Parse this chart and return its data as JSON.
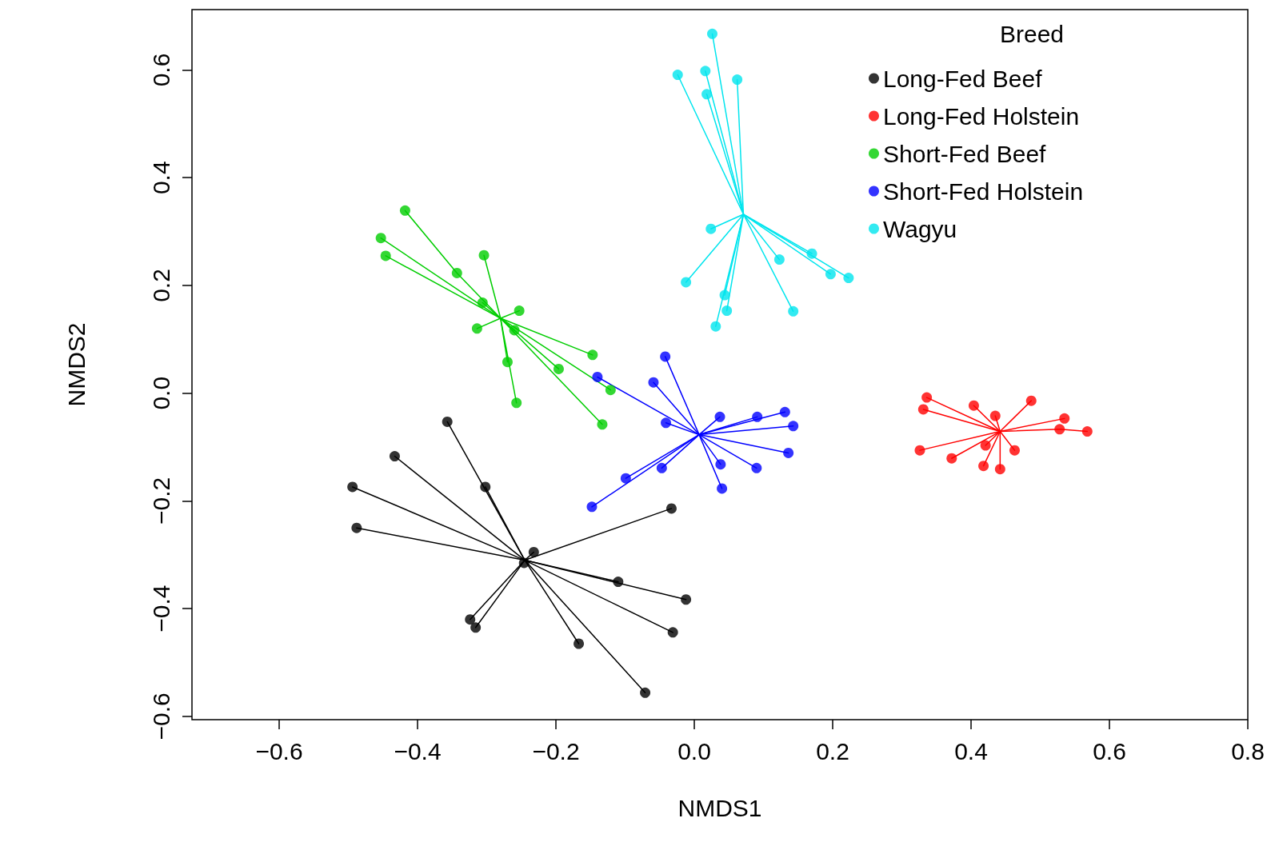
{
  "chart_data": {
    "type": "scatter",
    "xlabel": "NMDS1",
    "ylabel": "NMDS2",
    "legend_title": "Breed",
    "legend": "top right",
    "grid": false,
    "marker": "circle",
    "xlim": [
      -0.726,
      0.8
    ],
    "ylim": [
      -0.606,
      0.712
    ],
    "xticks": [
      {
        "value": -0.6,
        "label": "−0.6"
      },
      {
        "value": -0.4,
        "label": "−0.4"
      },
      {
        "value": -0.2,
        "label": "−0.2"
      },
      {
        "value": 0,
        "label": "0.0"
      },
      {
        "value": 0.2,
        "label": "0.2"
      },
      {
        "value": 0.4,
        "label": "0.4"
      },
      {
        "value": 0.6,
        "label": "0.6"
      },
      {
        "value": 0.8,
        "label": "0.8"
      }
    ],
    "yticks": [
      {
        "value": -0.6,
        "label": "−0.6"
      },
      {
        "value": -0.4,
        "label": "−0.4"
      },
      {
        "value": -0.2,
        "label": "−0.2"
      },
      {
        "value": 0,
        "label": "0.0"
      },
      {
        "value": 0.2,
        "label": "0.2"
      },
      {
        "value": 0.4,
        "label": "0.4"
      },
      {
        "value": 0.6,
        "label": "0.6"
      }
    ],
    "series": [
      {
        "name": "Long-Fed Beef",
        "color": "#000000",
        "x": [
          -0.357,
          -0.433,
          -0.494,
          -0.488,
          -0.302,
          -0.232,
          -0.246,
          -0.033,
          -0.11,
          -0.012,
          -0.031,
          -0.167,
          -0.324,
          -0.316,
          -0.071
        ],
        "values": [
          -0.053,
          -0.117,
          -0.174,
          -0.25,
          -0.174,
          -0.295,
          -0.315,
          -0.214,
          -0.35,
          -0.383,
          -0.444,
          -0.465,
          -0.42,
          -0.435,
          -0.556
        ]
      },
      {
        "name": "Long-Fed Holstein",
        "color": "#ff0000",
        "x": [
          0.336,
          0.331,
          0.404,
          0.435,
          0.487,
          0.535,
          0.528,
          0.568,
          0.326,
          0.372,
          0.421,
          0.463,
          0.418,
          0.442
        ],
        "values": [
          -0.008,
          -0.03,
          -0.023,
          -0.042,
          -0.014,
          -0.047,
          -0.067,
          -0.071,
          -0.106,
          -0.121,
          -0.097,
          -0.106,
          -0.135,
          -0.141
        ]
      },
      {
        "name": "Short-Fed Beef",
        "color": "#00cd00",
        "x": [
          -0.418,
          -0.453,
          -0.446,
          -0.304,
          -0.343,
          -0.306,
          -0.314,
          -0.253,
          -0.26,
          -0.27,
          -0.257,
          -0.196,
          -0.147,
          -0.121,
          -0.133
        ],
        "values": [
          0.339,
          0.288,
          0.255,
          0.256,
          0.223,
          0.168,
          0.12,
          0.153,
          0.117,
          0.058,
          -0.018,
          0.045,
          0.071,
          0.006,
          -0.058
        ]
      },
      {
        "name": "Short-Fed Holstein",
        "color": "#0000ff",
        "x": [
          -0.042,
          -0.059,
          -0.14,
          -0.041,
          0.037,
          0.091,
          0.131,
          0.143,
          0.136,
          0.038,
          0.09,
          0.04,
          -0.047,
          -0.099,
          -0.148
        ],
        "values": [
          0.068,
          0.02,
          0.03,
          -0.055,
          -0.044,
          -0.044,
          -0.035,
          -0.061,
          -0.111,
          -0.132,
          -0.139,
          -0.177,
          -0.139,
          -0.158,
          -0.211
        ]
      },
      {
        "name": "Wagyu",
        "color": "#00e5ee",
        "x": [
          0.026,
          -0.024,
          0.016,
          0.018,
          0.062,
          0.024,
          -0.012,
          0.044,
          0.047,
          0.031,
          0.123,
          0.17,
          0.197,
          0.223,
          0.143
        ],
        "values": [
          0.667,
          0.591,
          0.598,
          0.555,
          0.582,
          0.305,
          0.206,
          0.182,
          0.153,
          0.124,
          0.248,
          0.259,
          0.221,
          0.214,
          0.152
        ]
      },
      {
        "type": "line",
        "color": "#000000",
        "marker": "none",
        "x": [
          -0.245,
          -0.357
        ],
        "values": [
          -0.31,
          -0.053
        ]
      },
      {
        "type": "line",
        "color": "#000000",
        "marker": "none",
        "x": [
          -0.245,
          -0.433
        ],
        "values": [
          -0.31,
          -0.117
        ]
      },
      {
        "type": "line",
        "color": "#000000",
        "marker": "none",
        "x": [
          -0.245,
          -0.494
        ],
        "values": [
          -0.31,
          -0.174
        ]
      },
      {
        "type": "line",
        "color": "#000000",
        "marker": "none",
        "x": [
          -0.245,
          -0.488
        ],
        "values": [
          -0.31,
          -0.25
        ]
      },
      {
        "type": "line",
        "color": "#000000",
        "marker": "none",
        "x": [
          -0.245,
          -0.302
        ],
        "values": [
          -0.31,
          -0.174
        ]
      },
      {
        "type": "line",
        "color": "#000000",
        "marker": "none",
        "x": [
          -0.245,
          -0.232
        ],
        "values": [
          -0.31,
          -0.295
        ]
      },
      {
        "type": "line",
        "color": "#000000",
        "marker": "none",
        "x": [
          -0.245,
          -0.033
        ],
        "values": [
          -0.31,
          -0.214
        ]
      },
      {
        "type": "line",
        "color": "#000000",
        "marker": "none",
        "x": [
          -0.245,
          -0.11
        ],
        "values": [
          -0.31,
          -0.35
        ]
      },
      {
        "type": "line",
        "color": "#000000",
        "marker": "none",
        "x": [
          -0.245,
          -0.012
        ],
        "values": [
          -0.31,
          -0.383
        ]
      },
      {
        "type": "line",
        "color": "#000000",
        "marker": "none",
        "x": [
          -0.245,
          -0.031
        ],
        "values": [
          -0.31,
          -0.444
        ]
      },
      {
        "type": "line",
        "color": "#000000",
        "marker": "none",
        "x": [
          -0.245,
          -0.167
        ],
        "values": [
          -0.31,
          -0.465
        ]
      },
      {
        "type": "line",
        "color": "#000000",
        "marker": "none",
        "x": [
          -0.245,
          -0.324
        ],
        "values": [
          -0.31,
          -0.42
        ]
      },
      {
        "type": "line",
        "color": "#000000",
        "marker": "none",
        "x": [
          -0.245,
          -0.316
        ],
        "values": [
          -0.31,
          -0.435
        ]
      },
      {
        "type": "line",
        "color": "#000000",
        "marker": "none",
        "x": [
          -0.245,
          -0.071
        ],
        "values": [
          -0.31,
          -0.556
        ]
      },
      {
        "type": "line",
        "color": "#ff0000",
        "marker": "none",
        "x": [
          0.336,
          0.442,
          0.528,
          0.568
        ],
        "values": [
          -0.008,
          -0.071,
          -0.067,
          -0.071
        ]
      },
      {
        "type": "line",
        "color": "#ff0000",
        "marker": "none",
        "x": [
          0.442,
          0.331
        ],
        "values": [
          -0.071,
          -0.03
        ]
      },
      {
        "type": "line",
        "color": "#ff0000",
        "marker": "none",
        "x": [
          0.404,
          0.442,
          0.463
        ],
        "values": [
          -0.023,
          -0.071,
          -0.106
        ]
      },
      {
        "type": "line",
        "color": "#ff0000",
        "marker": "none",
        "x": [
          0.435,
          0.442,
          0.442
        ],
        "values": [
          -0.042,
          -0.071,
          -0.141
        ]
      },
      {
        "type": "line",
        "color": "#ff0000",
        "marker": "none",
        "x": [
          0.487,
          0.442,
          0.421
        ],
        "values": [
          -0.014,
          -0.071,
          -0.097
        ]
      },
      {
        "type": "line",
        "color": "#ff0000",
        "marker": "none",
        "x": [
          0.535,
          0.442,
          0.326
        ],
        "values": [
          -0.047,
          -0.071,
          -0.106
        ]
      },
      {
        "type": "line",
        "color": "#ff0000",
        "marker": "none",
        "x": [
          0.442,
          0.372
        ],
        "values": [
          -0.071,
          -0.121
        ]
      },
      {
        "type": "line",
        "color": "#ff0000",
        "marker": "none",
        "x": [
          0.442,
          0.418
        ],
        "values": [
          -0.071,
          -0.135
        ]
      },
      {
        "type": "line",
        "color": "#00cd00",
        "marker": "none",
        "x": [
          -0.418,
          -0.343,
          -0.28,
          -0.26
        ],
        "values": [
          0.339,
          0.223,
          0.139,
          0.117
        ]
      },
      {
        "type": "line",
        "color": "#00cd00",
        "marker": "none",
        "x": [
          -0.453,
          -0.28,
          -0.196
        ],
        "values": [
          0.288,
          0.139,
          0.045
        ]
      },
      {
        "type": "line",
        "color": "#00cd00",
        "marker": "none",
        "x": [
          -0.446,
          -0.28,
          -0.121
        ],
        "values": [
          0.255,
          0.139,
          0.006
        ]
      },
      {
        "type": "line",
        "color": "#00cd00",
        "marker": "none",
        "x": [
          -0.304,
          -0.28,
          -0.257
        ],
        "values": [
          0.256,
          0.139,
          -0.018
        ]
      },
      {
        "type": "line",
        "color": "#00cd00",
        "marker": "none",
        "x": [
          -0.306,
          -0.28,
          -0.133
        ],
        "values": [
          0.168,
          0.139,
          -0.058
        ]
      },
      {
        "type": "line",
        "color": "#00cd00",
        "marker": "none",
        "x": [
          -0.314,
          -0.28,
          -0.253
        ],
        "values": [
          0.12,
          0.139,
          0.153
        ]
      },
      {
        "type": "line",
        "color": "#00cd00",
        "marker": "none",
        "x": [
          -0.28,
          -0.27
        ],
        "values": [
          0.139,
          0.058
        ]
      },
      {
        "type": "line",
        "color": "#00cd00",
        "marker": "none",
        "x": [
          -0.28,
          -0.147
        ],
        "values": [
          0.139,
          0.071
        ]
      },
      {
        "type": "line",
        "color": "#0000ff",
        "marker": "none",
        "x": [
          -0.042,
          0.007,
          0.04
        ],
        "values": [
          0.068,
          -0.077,
          -0.177
        ]
      },
      {
        "type": "line",
        "color": "#0000ff",
        "marker": "none",
        "x": [
          -0.059,
          0.007,
          0.038
        ],
        "values": [
          0.02,
          -0.077,
          -0.132
        ]
      },
      {
        "type": "line",
        "color": "#0000ff",
        "marker": "none",
        "x": [
          -0.14,
          0.007,
          0.136
        ],
        "values": [
          0.03,
          -0.077,
          -0.111
        ]
      },
      {
        "type": "line",
        "color": "#0000ff",
        "marker": "none",
        "x": [
          -0.041,
          0.007,
          0.09
        ],
        "values": [
          -0.055,
          -0.077,
          -0.139
        ]
      },
      {
        "type": "line",
        "color": "#0000ff",
        "marker": "none",
        "x": [
          -0.047,
          0.007,
          0.037
        ],
        "values": [
          -0.139,
          -0.077,
          -0.044
        ]
      },
      {
        "type": "line",
        "color": "#0000ff",
        "marker": "none",
        "x": [
          -0.099,
          0.007,
          0.091
        ],
        "values": [
          -0.158,
          -0.077,
          -0.044
        ]
      },
      {
        "type": "line",
        "color": "#0000ff",
        "marker": "none",
        "x": [
          -0.148,
          0.007,
          0.131
        ],
        "values": [
          -0.211,
          -0.077,
          -0.035
        ]
      },
      {
        "type": "line",
        "color": "#0000ff",
        "marker": "none",
        "x": [
          0.007,
          0.143
        ],
        "values": [
          -0.077,
          -0.061
        ]
      },
      {
        "type": "line",
        "color": "#00e5ee",
        "marker": "none",
        "x": [
          0.026,
          0.071,
          0.044
        ],
        "values": [
          0.667,
          0.332,
          0.182
        ]
      },
      {
        "type": "line",
        "color": "#00e5ee",
        "marker": "none",
        "x": [
          -0.024,
          0.071,
          0.123
        ],
        "values": [
          0.591,
          0.332,
          0.248
        ]
      },
      {
        "type": "line",
        "color": "#00e5ee",
        "marker": "none",
        "x": [
          0.016,
          0.071,
          0.047
        ],
        "values": [
          0.598,
          0.332,
          0.153
        ]
      },
      {
        "type": "line",
        "color": "#00e5ee",
        "marker": "none",
        "x": [
          0.018,
          0.071,
          0.143
        ],
        "values": [
          0.555,
          0.332,
          0.152
        ]
      },
      {
        "type": "line",
        "color": "#00e5ee",
        "marker": "none",
        "x": [
          0.062,
          0.071,
          0.031
        ],
        "values": [
          0.582,
          0.332,
          0.124
        ]
      },
      {
        "type": "line",
        "color": "#00e5ee",
        "marker": "none",
        "x": [
          0.071,
          0.024
        ],
        "values": [
          0.332,
          0.305
        ]
      },
      {
        "type": "line",
        "color": "#00e5ee",
        "marker": "none",
        "x": [
          0.071,
          -0.012
        ],
        "values": [
          0.332,
          0.206
        ]
      },
      {
        "type": "line",
        "color": "#00e5ee",
        "marker": "none",
        "x": [
          0.071,
          0.17
        ],
        "values": [
          0.332,
          0.259
        ]
      },
      {
        "type": "line",
        "color": "#00e5ee",
        "marker": "none",
        "x": [
          0.071,
          0.197
        ],
        "values": [
          0.332,
          0.221
        ]
      },
      {
        "type": "line",
        "color": "#00e5ee",
        "marker": "none",
        "x": [
          0.071,
          0.223
        ],
        "values": [
          0.332,
          0.214
        ]
      }
    ]
  }
}
